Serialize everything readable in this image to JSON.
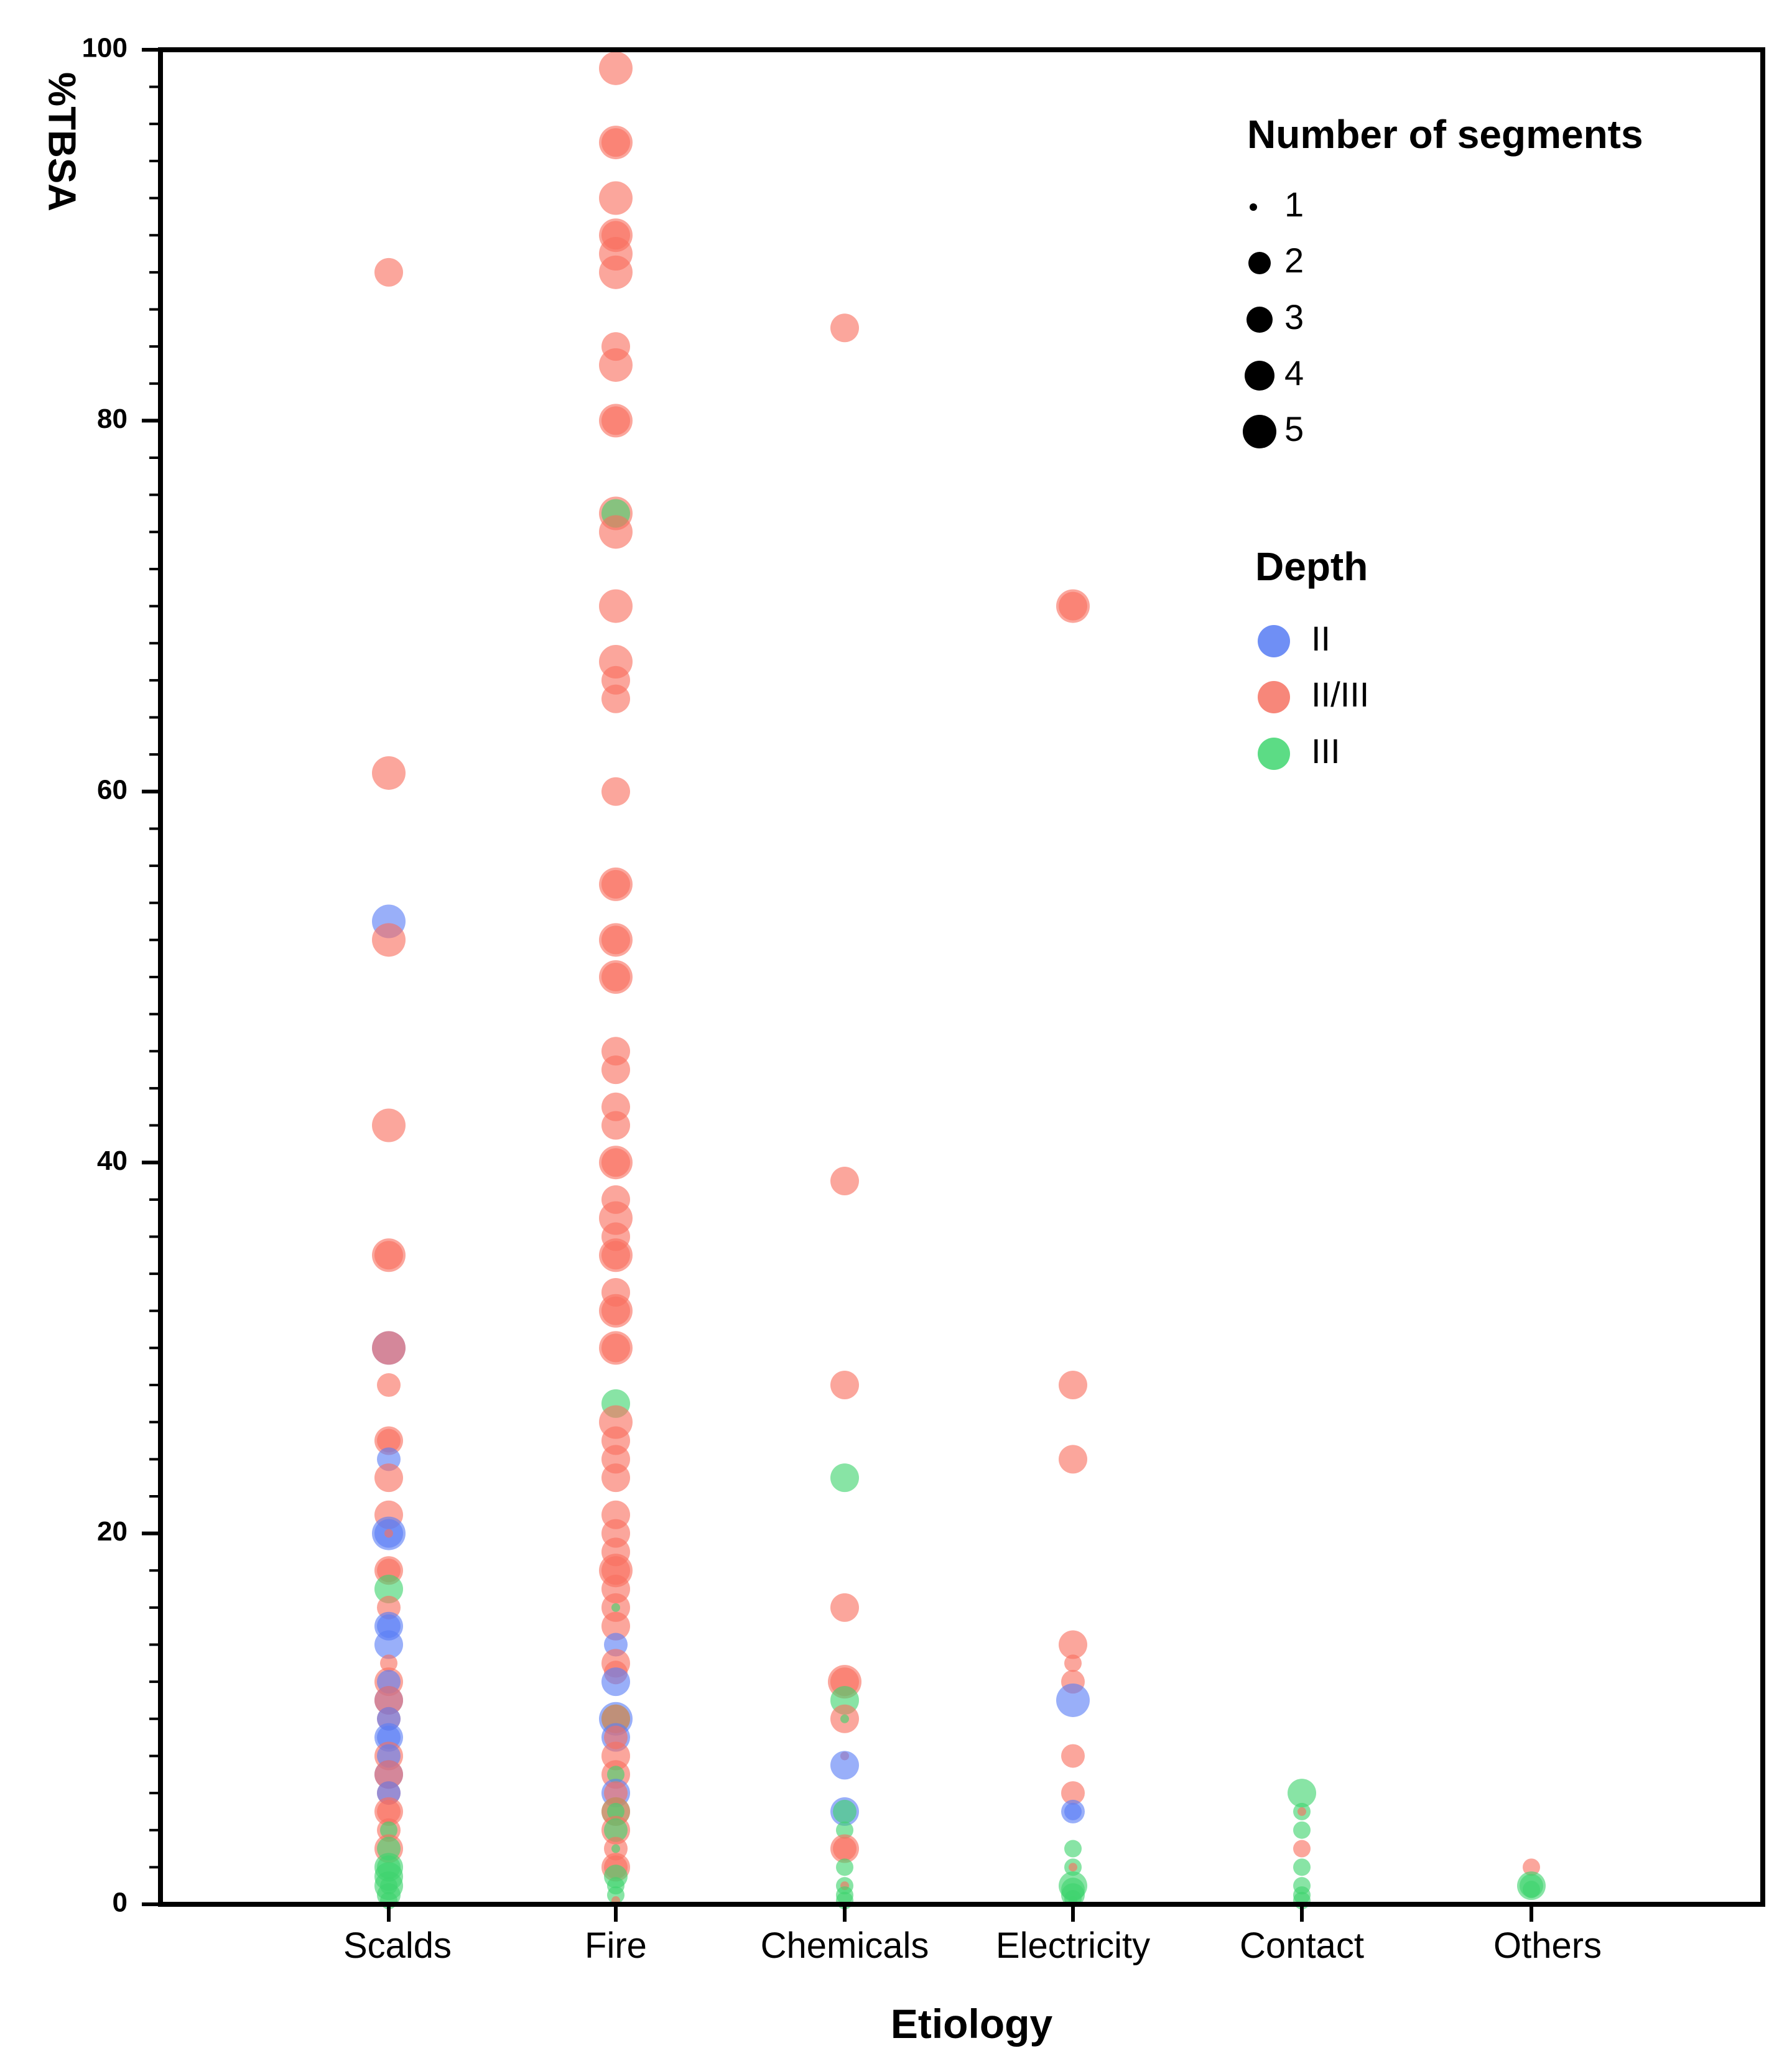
{
  "chart_data": {
    "type": "scatter",
    "title": "",
    "xlabel": "Etiology",
    "ylabel": "%TBSA",
    "ylim": [
      0,
      100
    ],
    "yticks": [
      0,
      20,
      40,
      60,
      80,
      100
    ],
    "categories": [
      "Scalds",
      "Fire",
      "Chemicals",
      "Electricity",
      "Contact",
      "Others"
    ],
    "size_legend": {
      "title": "Number of segments",
      "entries": [
        {
          "label": "1",
          "segments": 1
        },
        {
          "label": "2",
          "segments": 2
        },
        {
          "label": "3",
          "segments": 3
        },
        {
          "label": "4",
          "segments": 4
        },
        {
          "label": "5",
          "segments": 5
        }
      ]
    },
    "color_legend": {
      "title": "Depth",
      "entries": [
        {
          "label": "II",
          "color": "#6f8ff5"
        },
        {
          "label": "II/III",
          "color": "#f7877a"
        },
        {
          "label": "III",
          "color": "#5cdc85"
        }
      ]
    },
    "depth_colors": {
      "II": "#5a7ef5",
      "II/III": "#f8705f",
      "III": "#3fd46e"
    },
    "points": [
      {
        "c": "Scalds",
        "y": 88,
        "d": "II/III",
        "n": 4
      },
      {
        "c": "Scalds",
        "y": 61,
        "d": "II/III",
        "n": 5
      },
      {
        "c": "Scalds",
        "y": 53,
        "d": "II",
        "n": 5
      },
      {
        "c": "Scalds",
        "y": 52,
        "d": "II/III",
        "n": 5
      },
      {
        "c": "Scalds",
        "y": 42,
        "d": "II/III",
        "n": 5
      },
      {
        "c": "Scalds",
        "y": 35,
        "d": "II/III",
        "n": 5
      },
      {
        "c": "Scalds",
        "y": 35,
        "d": "II/III",
        "n": 4
      },
      {
        "c": "Scalds",
        "y": 30,
        "d": "II",
        "n": 5
      },
      {
        "c": "Scalds",
        "y": 30,
        "d": "II/III",
        "n": 5
      },
      {
        "c": "Scalds",
        "y": 28,
        "d": "II/III",
        "n": 3
      },
      {
        "c": "Scalds",
        "y": 25,
        "d": "II/III",
        "n": 4
      },
      {
        "c": "Scalds",
        "y": 25,
        "d": "II/III",
        "n": 3
      },
      {
        "c": "Scalds",
        "y": 24,
        "d": "II",
        "n": 3
      },
      {
        "c": "Scalds",
        "y": 23,
        "d": "II/III",
        "n": 4
      },
      {
        "c": "Scalds",
        "y": 21,
        "d": "II/III",
        "n": 4
      },
      {
        "c": "Scalds",
        "y": 20,
        "d": "II",
        "n": 5
      },
      {
        "c": "Scalds",
        "y": 20,
        "d": "II",
        "n": 4
      },
      {
        "c": "Scalds",
        "y": 20,
        "d": "II/III",
        "n": 1
      },
      {
        "c": "Scalds",
        "y": 18,
        "d": "II/III",
        "n": 4
      },
      {
        "c": "Scalds",
        "y": 18,
        "d": "II/III",
        "n": 3
      },
      {
        "c": "Scalds",
        "y": 17,
        "d": "III",
        "n": 4
      },
      {
        "c": "Scalds",
        "y": 16,
        "d": "II/III",
        "n": 3
      },
      {
        "c": "Scalds",
        "y": 15,
        "d": "II",
        "n": 4
      },
      {
        "c": "Scalds",
        "y": 15,
        "d": "II",
        "n": 3
      },
      {
        "c": "Scalds",
        "y": 14,
        "d": "II",
        "n": 4
      },
      {
        "c": "Scalds",
        "y": 13,
        "d": "II/III",
        "n": 2
      },
      {
        "c": "Scalds",
        "y": 12,
        "d": "II/III",
        "n": 4
      },
      {
        "c": "Scalds",
        "y": 12,
        "d": "II",
        "n": 3
      },
      {
        "c": "Scalds",
        "y": 11,
        "d": "II",
        "n": 4
      },
      {
        "c": "Scalds",
        "y": 11,
        "d": "II/III",
        "n": 4
      },
      {
        "c": "Scalds",
        "y": 10,
        "d": "II/III",
        "n": 3
      },
      {
        "c": "Scalds",
        "y": 10,
        "d": "II",
        "n": 3
      },
      {
        "c": "Scalds",
        "y": 9,
        "d": "II",
        "n": 4
      },
      {
        "c": "Scalds",
        "y": 9,
        "d": "II",
        "n": 3
      },
      {
        "c": "Scalds",
        "y": 8,
        "d": "II/III",
        "n": 4
      },
      {
        "c": "Scalds",
        "y": 8,
        "d": "II",
        "n": 3
      },
      {
        "c": "Scalds",
        "y": 7,
        "d": "II",
        "n": 4
      },
      {
        "c": "Scalds",
        "y": 7,
        "d": "II/III",
        "n": 4
      },
      {
        "c": "Scalds",
        "y": 6,
        "d": "II/III",
        "n": 3
      },
      {
        "c": "Scalds",
        "y": 6,
        "d": "II",
        "n": 3
      },
      {
        "c": "Scalds",
        "y": 5,
        "d": "II/III",
        "n": 4
      },
      {
        "c": "Scalds",
        "y": 5,
        "d": "II/III",
        "n": 3
      },
      {
        "c": "Scalds",
        "y": 4,
        "d": "II/III",
        "n": 3
      },
      {
        "c": "Scalds",
        "y": 4,
        "d": "III",
        "n": 2
      },
      {
        "c": "Scalds",
        "y": 3,
        "d": "II/III",
        "n": 4
      },
      {
        "c": "Scalds",
        "y": 3,
        "d": "III",
        "n": 3
      },
      {
        "c": "Scalds",
        "y": 2,
        "d": "III",
        "n": 4
      },
      {
        "c": "Scalds",
        "y": 2,
        "d": "III",
        "n": 3
      },
      {
        "c": "Scalds",
        "y": 1.5,
        "d": "III",
        "n": 4
      },
      {
        "c": "Scalds",
        "y": 1,
        "d": "III",
        "n": 4
      },
      {
        "c": "Scalds",
        "y": 1,
        "d": "III",
        "n": 2
      },
      {
        "c": "Scalds",
        "y": 0.5,
        "d": "III",
        "n": 3
      },
      {
        "c": "Scalds",
        "y": 0.2,
        "d": "III",
        "n": 2
      },
      {
        "c": "Fire",
        "y": 99,
        "d": "II/III",
        "n": 5
      },
      {
        "c": "Fire",
        "y": 95,
        "d": "II/III",
        "n": 5
      },
      {
        "c": "Fire",
        "y": 95,
        "d": "II/III",
        "n": 4
      },
      {
        "c": "Fire",
        "y": 92,
        "d": "II/III",
        "n": 5
      },
      {
        "c": "Fire",
        "y": 90,
        "d": "II/III",
        "n": 5
      },
      {
        "c": "Fire",
        "y": 90,
        "d": "II/III",
        "n": 4
      },
      {
        "c": "Fire",
        "y": 89,
        "d": "II/III",
        "n": 5
      },
      {
        "c": "Fire",
        "y": 88,
        "d": "II/III",
        "n": 5
      },
      {
        "c": "Fire",
        "y": 84,
        "d": "II/III",
        "n": 4
      },
      {
        "c": "Fire",
        "y": 83,
        "d": "II/III",
        "n": 5
      },
      {
        "c": "Fire",
        "y": 80,
        "d": "II/III",
        "n": 5
      },
      {
        "c": "Fire",
        "y": 80,
        "d": "II/III",
        "n": 4
      },
      {
        "c": "Fire",
        "y": 75,
        "d": "II/III",
        "n": 5
      },
      {
        "c": "Fire",
        "y": 75,
        "d": "III",
        "n": 4
      },
      {
        "c": "Fire",
        "y": 74,
        "d": "II/III",
        "n": 5
      },
      {
        "c": "Fire",
        "y": 70,
        "d": "II/III",
        "n": 5
      },
      {
        "c": "Fire",
        "y": 67,
        "d": "II/III",
        "n": 5
      },
      {
        "c": "Fire",
        "y": 66,
        "d": "II/III",
        "n": 4
      },
      {
        "c": "Fire",
        "y": 65,
        "d": "II/III",
        "n": 4
      },
      {
        "c": "Fire",
        "y": 60,
        "d": "II/III",
        "n": 4
      },
      {
        "c": "Fire",
        "y": 55,
        "d": "II/III",
        "n": 5
      },
      {
        "c": "Fire",
        "y": 55,
        "d": "II/III",
        "n": 4
      },
      {
        "c": "Fire",
        "y": 52,
        "d": "II/III",
        "n": 5
      },
      {
        "c": "Fire",
        "y": 52,
        "d": "II/III",
        "n": 4
      },
      {
        "c": "Fire",
        "y": 50,
        "d": "II/III",
        "n": 5
      },
      {
        "c": "Fire",
        "y": 50,
        "d": "II/III",
        "n": 4
      },
      {
        "c": "Fire",
        "y": 46,
        "d": "II/III",
        "n": 4
      },
      {
        "c": "Fire",
        "y": 45,
        "d": "II/III",
        "n": 4
      },
      {
        "c": "Fire",
        "y": 43,
        "d": "II/III",
        "n": 4
      },
      {
        "c": "Fire",
        "y": 42,
        "d": "II/III",
        "n": 4
      },
      {
        "c": "Fire",
        "y": 40,
        "d": "II/III",
        "n": 5
      },
      {
        "c": "Fire",
        "y": 40,
        "d": "II/III",
        "n": 4
      },
      {
        "c": "Fire",
        "y": 38,
        "d": "II/III",
        "n": 4
      },
      {
        "c": "Fire",
        "y": 37,
        "d": "II/III",
        "n": 5
      },
      {
        "c": "Fire",
        "y": 36,
        "d": "II/III",
        "n": 4
      },
      {
        "c": "Fire",
        "y": 35,
        "d": "II/III",
        "n": 5
      },
      {
        "c": "Fire",
        "y": 35,
        "d": "II/III",
        "n": 4
      },
      {
        "c": "Fire",
        "y": 33,
        "d": "II/III",
        "n": 4
      },
      {
        "c": "Fire",
        "y": 32,
        "d": "II/III",
        "n": 5
      },
      {
        "c": "Fire",
        "y": 32,
        "d": "II/III",
        "n": 4
      },
      {
        "c": "Fire",
        "y": 30,
        "d": "II/III",
        "n": 5
      },
      {
        "c": "Fire",
        "y": 30,
        "d": "II/III",
        "n": 4
      },
      {
        "c": "Fire",
        "y": 27,
        "d": "III",
        "n": 4
      },
      {
        "c": "Fire",
        "y": 26,
        "d": "II/III",
        "n": 5
      },
      {
        "c": "Fire",
        "y": 25,
        "d": "II/III",
        "n": 4
      },
      {
        "c": "Fire",
        "y": 24,
        "d": "II/III",
        "n": 4
      },
      {
        "c": "Fire",
        "y": 23,
        "d": "II/III",
        "n": 4
      },
      {
        "c": "Fire",
        "y": 21,
        "d": "II/III",
        "n": 4
      },
      {
        "c": "Fire",
        "y": 20,
        "d": "II/III",
        "n": 4
      },
      {
        "c": "Fire",
        "y": 19,
        "d": "II/III",
        "n": 4
      },
      {
        "c": "Fire",
        "y": 18,
        "d": "II/III",
        "n": 5
      },
      {
        "c": "Fire",
        "y": 18,
        "d": "II/III",
        "n": 4
      },
      {
        "c": "Fire",
        "y": 17,
        "d": "II/III",
        "n": 4
      },
      {
        "c": "Fire",
        "y": 16,
        "d": "II/III",
        "n": 4
      },
      {
        "c": "Fire",
        "y": 16,
        "d": "III",
        "n": 1
      },
      {
        "c": "Fire",
        "y": 15,
        "d": "II/III",
        "n": 4
      },
      {
        "c": "Fire",
        "y": 14,
        "d": "II",
        "n": 3
      },
      {
        "c": "Fire",
        "y": 13,
        "d": "II/III",
        "n": 4
      },
      {
        "c": "Fire",
        "y": 12.5,
        "d": "II/III",
        "n": 3
      },
      {
        "c": "Fire",
        "y": 12,
        "d": "II",
        "n": 4
      },
      {
        "c": "Fire",
        "y": 10,
        "d": "II",
        "n": 5
      },
      {
        "c": "Fire",
        "y": 10,
        "d": "III",
        "n": 4
      },
      {
        "c": "Fire",
        "y": 10,
        "d": "II/III",
        "n": 4
      },
      {
        "c": "Fire",
        "y": 9,
        "d": "II",
        "n": 4
      },
      {
        "c": "Fire",
        "y": 9,
        "d": "II/III",
        "n": 3
      },
      {
        "c": "Fire",
        "y": 8,
        "d": "II/III",
        "n": 4
      },
      {
        "c": "Fire",
        "y": 7,
        "d": "II/III",
        "n": 4
      },
      {
        "c": "Fire",
        "y": 7,
        "d": "III",
        "n": 2
      },
      {
        "c": "Fire",
        "y": 6,
        "d": "II",
        "n": 4
      },
      {
        "c": "Fire",
        "y": 6,
        "d": "II/III",
        "n": 3
      },
      {
        "c": "Fire",
        "y": 5,
        "d": "III",
        "n": 4
      },
      {
        "c": "Fire",
        "y": 5,
        "d": "II/III",
        "n": 4
      },
      {
        "c": "Fire",
        "y": 5,
        "d": "III",
        "n": 2
      },
      {
        "c": "Fire",
        "y": 4,
        "d": "II/III",
        "n": 4
      },
      {
        "c": "Fire",
        "y": 4,
        "d": "III",
        "n": 3
      },
      {
        "c": "Fire",
        "y": 3,
        "d": "II/III",
        "n": 3
      },
      {
        "c": "Fire",
        "y": 3,
        "d": "III",
        "n": 1
      },
      {
        "c": "Fire",
        "y": 2,
        "d": "II/III",
        "n": 4
      },
      {
        "c": "Fire",
        "y": 2,
        "d": "II/III",
        "n": 3
      },
      {
        "c": "Fire",
        "y": 1.5,
        "d": "III",
        "n": 3
      },
      {
        "c": "Fire",
        "y": 1,
        "d": "III",
        "n": 2
      },
      {
        "c": "Fire",
        "y": 0.5,
        "d": "III",
        "n": 2
      },
      {
        "c": "Fire",
        "y": 0.2,
        "d": "II/III",
        "n": 1
      },
      {
        "c": "Chemicals",
        "y": 85,
        "d": "II/III",
        "n": 4
      },
      {
        "c": "Chemicals",
        "y": 39,
        "d": "II/III",
        "n": 4
      },
      {
        "c": "Chemicals",
        "y": 28,
        "d": "II/III",
        "n": 4
      },
      {
        "c": "Chemicals",
        "y": 23,
        "d": "III",
        "n": 4
      },
      {
        "c": "Chemicals",
        "y": 16,
        "d": "II/III",
        "n": 4
      },
      {
        "c": "Chemicals",
        "y": 12,
        "d": "II/III",
        "n": 5
      },
      {
        "c": "Chemicals",
        "y": 12,
        "d": "II/III",
        "n": 4
      },
      {
        "c": "Chemicals",
        "y": 11,
        "d": "III",
        "n": 4
      },
      {
        "c": "Chemicals",
        "y": 10,
        "d": "II/III",
        "n": 4
      },
      {
        "c": "Chemicals",
        "y": 10,
        "d": "III",
        "n": 1
      },
      {
        "c": "Chemicals",
        "y": 8,
        "d": "II/III",
        "n": 1
      },
      {
        "c": "Chemicals",
        "y": 7.5,
        "d": "II",
        "n": 4
      },
      {
        "c": "Chemicals",
        "y": 5,
        "d": "II",
        "n": 4
      },
      {
        "c": "Chemicals",
        "y": 5,
        "d": "III",
        "n": 3
      },
      {
        "c": "Chemicals",
        "y": 4,
        "d": "III",
        "n": 2
      },
      {
        "c": "Chemicals",
        "y": 3,
        "d": "II/III",
        "n": 4
      },
      {
        "c": "Chemicals",
        "y": 3,
        "d": "II/III",
        "n": 3
      },
      {
        "c": "Chemicals",
        "y": 2,
        "d": "III",
        "n": 2
      },
      {
        "c": "Chemicals",
        "y": 1,
        "d": "III",
        "n": 2
      },
      {
        "c": "Chemicals",
        "y": 1,
        "d": "II/III",
        "n": 1
      },
      {
        "c": "Chemicals",
        "y": 0.5,
        "d": "III",
        "n": 2
      },
      {
        "c": "Chemicals",
        "y": 0.2,
        "d": "III",
        "n": 2
      },
      {
        "c": "Electricity",
        "y": 70,
        "d": "II/III",
        "n": 5
      },
      {
        "c": "Electricity",
        "y": 70,
        "d": "II/III",
        "n": 4
      },
      {
        "c": "Electricity",
        "y": 28,
        "d": "II/III",
        "n": 4
      },
      {
        "c": "Electricity",
        "y": 24,
        "d": "II/III",
        "n": 4
      },
      {
        "c": "Electricity",
        "y": 14,
        "d": "II/III",
        "n": 4
      },
      {
        "c": "Electricity",
        "y": 13,
        "d": "II/III",
        "n": 2
      },
      {
        "c": "Electricity",
        "y": 12,
        "d": "II/III",
        "n": 3
      },
      {
        "c": "Electricity",
        "y": 11,
        "d": "II",
        "n": 5
      },
      {
        "c": "Electricity",
        "y": 8,
        "d": "II/III",
        "n": 3
      },
      {
        "c": "Electricity",
        "y": 6,
        "d": "II/III",
        "n": 3
      },
      {
        "c": "Electricity",
        "y": 5,
        "d": "II",
        "n": 3
      },
      {
        "c": "Electricity",
        "y": 5,
        "d": "II",
        "n": 2
      },
      {
        "c": "Electricity",
        "y": 3,
        "d": "III",
        "n": 2
      },
      {
        "c": "Electricity",
        "y": 2,
        "d": "III",
        "n": 2
      },
      {
        "c": "Electricity",
        "y": 2,
        "d": "II/III",
        "n": 1
      },
      {
        "c": "Electricity",
        "y": 1,
        "d": "III",
        "n": 4
      },
      {
        "c": "Electricity",
        "y": 0.8,
        "d": "III",
        "n": 3
      },
      {
        "c": "Electricity",
        "y": 0.5,
        "d": "III",
        "n": 3
      },
      {
        "c": "Electricity",
        "y": 0.3,
        "d": "III",
        "n": 2
      },
      {
        "c": "Electricity",
        "y": 0.2,
        "d": "III",
        "n": 1
      },
      {
        "c": "Contact",
        "y": 6,
        "d": "III",
        "n": 4
      },
      {
        "c": "Contact",
        "y": 5,
        "d": "III",
        "n": 2
      },
      {
        "c": "Contact",
        "y": 5,
        "d": "II/III",
        "n": 1
      },
      {
        "c": "Contact",
        "y": 4,
        "d": "III",
        "n": 2
      },
      {
        "c": "Contact",
        "y": 3,
        "d": "II/III",
        "n": 2
      },
      {
        "c": "Contact",
        "y": 2,
        "d": "III",
        "n": 2
      },
      {
        "c": "Contact",
        "y": 1,
        "d": "III",
        "n": 2
      },
      {
        "c": "Contact",
        "y": 0.5,
        "d": "III",
        "n": 2
      },
      {
        "c": "Contact",
        "y": 0.2,
        "d": "III",
        "n": 2
      },
      {
        "c": "Others",
        "y": 2,
        "d": "II/III",
        "n": 2
      },
      {
        "c": "Others",
        "y": 1,
        "d": "III",
        "n": 4
      },
      {
        "c": "Others",
        "y": 1,
        "d": "III",
        "n": 3
      },
      {
        "c": "Others",
        "y": 0.8,
        "d": "III",
        "n": 2
      }
    ]
  }
}
